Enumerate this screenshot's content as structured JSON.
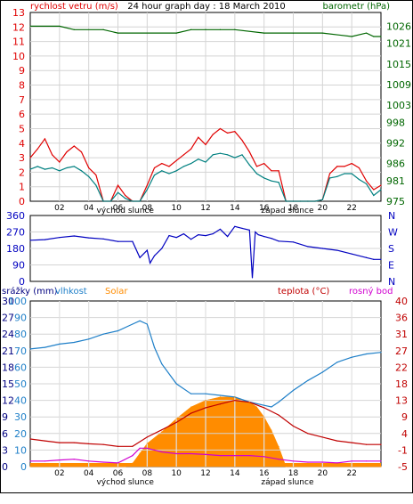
{
  "colors": {
    "wind": "#e00000",
    "wind_avg": "#008080",
    "barometer": "#006600",
    "direction": "#0000c0",
    "rain": "#000080",
    "humidity": "#1e7fc8",
    "solar": "#ff8c00",
    "temperature": "#c00000",
    "dewpoint": "#d000d0"
  },
  "chart_data": [
    {
      "type": "line",
      "title": "24 hour graph day : 18 March 2010",
      "ylabel_left": "rychlost vetru (m/s)",
      "ylabel_right": "barometr (hPa)",
      "ylim_left": [
        0,
        13
      ],
      "ylim_right": [
        975,
        1030
      ],
      "yticks_left": [
        "0",
        "1",
        "2",
        "3",
        "4",
        "5",
        "6",
        "7",
        "8",
        "9",
        "10",
        "11",
        "12",
        "13"
      ],
      "yticks_right": [
        "975",
        "981",
        "986",
        "992",
        "998",
        "1003",
        "1009",
        "1015",
        "1021",
        "1026"
      ],
      "xticks": [
        "02",
        "04",
        "06",
        "08",
        "10",
        "12",
        "14",
        "16",
        "18",
        "20",
        "22"
      ],
      "sunrise_label": "východ slunce",
      "sunset_label": "západ slunce",
      "sunrise_hour": 6.5,
      "sunset_hour": 17.6,
      "series": [
        {
          "key": "gust",
          "color_key": "wind",
          "axis": "left",
          "x": [
            0,
            0.5,
            1,
            1.5,
            2,
            2.5,
            3,
            3.5,
            4,
            4.5,
            5,
            5.5,
            6,
            6.5,
            7,
            7.5,
            8,
            8.5,
            9,
            9.5,
            10,
            10.5,
            11,
            11.5,
            12,
            12.5,
            13,
            13.5,
            14,
            14.5,
            15,
            15.5,
            16,
            16.5,
            17,
            17.5,
            18,
            18.5,
            19,
            19.5,
            20,
            20.5,
            21,
            21.5,
            22,
            22.5,
            23,
            23.5,
            24
          ],
          "y": [
            3,
            3.6,
            4.3,
            3.2,
            2.7,
            3.4,
            3.8,
            3.4,
            2.3,
            1.8,
            0,
            0,
            1.1,
            0.4,
            0,
            0,
            1.1,
            2.3,
            2.6,
            2.4,
            2.8,
            3.2,
            3.6,
            4.4,
            3.9,
            4.6,
            5,
            4.7,
            4.8,
            4.2,
            3.4,
            2.4,
            2.6,
            2.1,
            2.1,
            0,
            0,
            0,
            0,
            0,
            0.1,
            1.9,
            2.4,
            2.4,
            2.6,
            2.3,
            1.4,
            0.8,
            1.1
          ]
        },
        {
          "key": "wind_avg",
          "color_key": "wind_avg",
          "axis": "left",
          "x": [
            0,
            0.5,
            1,
            1.5,
            2,
            2.5,
            3,
            3.5,
            4,
            4.5,
            5,
            5.5,
            6,
            6.5,
            7,
            7.5,
            8,
            8.5,
            9,
            9.5,
            10,
            10.5,
            11,
            11.5,
            12,
            12.5,
            13,
            13.5,
            14,
            14.5,
            15,
            15.5,
            16,
            16.5,
            17,
            17.5,
            18,
            18.5,
            19,
            19.5,
            20,
            20.5,
            21,
            21.5,
            22,
            22.5,
            23,
            23.5,
            24
          ],
          "y": [
            2.2,
            2.4,
            2.2,
            2.3,
            2.1,
            2.3,
            2.4,
            2.1,
            1.7,
            1.1,
            0,
            0,
            0.6,
            0.2,
            0,
            0,
            0.8,
            1.8,
            2.1,
            1.9,
            2.1,
            2.4,
            2.6,
            2.9,
            2.7,
            3.2,
            3.3,
            3.2,
            3,
            3.2,
            2.5,
            1.9,
            1.6,
            1.4,
            1.3,
            0,
            0,
            0,
            0,
            0,
            0.1,
            1.6,
            1.7,
            1.9,
            1.9,
            1.5,
            1.2,
            0.4,
            0.8
          ]
        },
        {
          "key": "barometer",
          "color_key": "barometer",
          "axis": "right",
          "x": [
            0,
            2,
            3,
            5,
            6,
            10,
            11,
            12,
            13,
            14,
            16,
            18,
            20,
            22,
            23,
            23.5,
            24
          ],
          "y": [
            1026,
            1026,
            1025,
            1025,
            1024,
            1024,
            1025,
            1025,
            1025,
            1025,
            1024,
            1024,
            1024,
            1023,
            1024,
            1023,
            1023
          ]
        }
      ]
    },
    {
      "type": "line",
      "ylim": [
        0,
        360
      ],
      "yticks": [
        "0",
        "90",
        "180",
        "270",
        "360"
      ],
      "right_labels": [
        "N",
        "W",
        "S",
        "E",
        "N"
      ],
      "series": [
        {
          "key": "direction",
          "color_key": "direction",
          "x": [
            0,
            1,
            2,
            3,
            4,
            5,
            6,
            7,
            7.5,
            8,
            8.2,
            8.5,
            9,
            9.5,
            10,
            10.5,
            11,
            11.5,
            12,
            12.5,
            13,
            13.5,
            14,
            14.5,
            15,
            15.2,
            15.4,
            15.6,
            16,
            16.5,
            17,
            18,
            19,
            20,
            21,
            22,
            23,
            23.5,
            24
          ],
          "y": [
            225,
            228,
            240,
            248,
            238,
            232,
            218,
            218,
            130,
            170,
            100,
            140,
            180,
            250,
            240,
            260,
            230,
            255,
            250,
            260,
            285,
            245,
            300,
            290,
            280,
            20,
            270,
            255,
            245,
            235,
            220,
            215,
            190,
            180,
            170,
            150,
            130,
            120,
            120
          ]
        }
      ]
    },
    {
      "type": "line",
      "legend": [
        "srážky (mm)",
        "vlhkost",
        "Solar",
        "teplota (°C)",
        "rosný bod"
      ],
      "ylim_rain": [
        0,
        30
      ],
      "yticks_rain": [
        "0",
        "3",
        "6",
        "9",
        "12",
        "15",
        "18",
        "21",
        "24",
        "27",
        "30"
      ],
      "ylim_humidity": [
        0,
        100
      ],
      "yticks_humidity": [
        "0",
        "10",
        "20",
        "30",
        "40",
        "50",
        "60",
        "70",
        "80",
        "90",
        "100"
      ],
      "ylim_temp": [
        -5,
        40
      ],
      "yticks_temp": [
        "-5",
        "-1",
        "4",
        "9",
        "13",
        "18",
        "22",
        "27",
        "31",
        "36",
        "40"
      ],
      "xticks": [
        "02",
        "04",
        "06",
        "08",
        "10",
        "12",
        "14",
        "16",
        "18",
        "20",
        "22"
      ],
      "sunrise_label": "východ slunce",
      "sunset_label": "západ slunce",
      "series": [
        {
          "key": "humidity",
          "color_key": "humidity",
          "axis": "humidity",
          "x": [
            0,
            1,
            2,
            3,
            4,
            5,
            6,
            7,
            7.5,
            8,
            8.5,
            9,
            10,
            11,
            12,
            13,
            14,
            15,
            16,
            16.5,
            17,
            18,
            19,
            20,
            21,
            22,
            23,
            24
          ],
          "y": [
            71,
            72,
            74,
            75,
            77,
            80,
            82,
            86,
            88,
            86,
            72,
            62,
            50,
            44,
            44,
            43,
            42,
            39,
            37,
            36,
            39,
            46,
            52,
            57,
            63,
            66,
            68,
            69
          ]
        },
        {
          "key": "solar",
          "color_key": "solar",
          "axis": "humidity",
          "x": [
            0,
            6.5,
            7,
            7.5,
            8,
            9,
            10,
            11,
            12,
            13,
            14,
            15,
            15.5,
            16,
            16.5,
            17,
            17.5,
            24
          ],
          "y": [
            0,
            0,
            2,
            8,
            14,
            21,
            29,
            36,
            40,
            42,
            42,
            39,
            36,
            30,
            22,
            12,
            0,
            0
          ]
        },
        {
          "key": "temperature",
          "color_key": "temperature",
          "axis": "temp",
          "x": [
            0,
            1,
            2,
            3,
            4,
            5,
            6,
            7,
            8,
            9,
            10,
            11,
            12,
            13,
            14,
            15,
            16,
            17,
            18,
            19,
            20,
            21,
            22,
            23,
            24
          ],
          "y": [
            2.5,
            2,
            1.5,
            1.5,
            1.2,
            1,
            0.5,
            0.5,
            3,
            5,
            7,
            9.5,
            11,
            12,
            13,
            12.5,
            11,
            9,
            6,
            4,
            3,
            2,
            1.5,
            1,
            1
          ]
        },
        {
          "key": "dewpoint",
          "color_key": "dewpoint",
          "axis": "temp",
          "x": [
            0,
            1,
            2,
            3,
            4,
            5,
            6,
            7,
            7.5,
            8,
            8.5,
            9,
            10,
            11,
            12,
            13,
            14,
            15,
            16,
            17,
            18,
            19,
            20,
            21,
            22,
            23,
            24
          ],
          "y": [
            -3.5,
            -3.5,
            -3.2,
            -3,
            -3.5,
            -3.8,
            -4,
            -2,
            0,
            0,
            -0.5,
            -1,
            -1.5,
            -1.5,
            -1.7,
            -2,
            -2,
            -2,
            -2.3,
            -3,
            -3.5,
            -3.8,
            -3.8,
            -4,
            -3.5,
            -3.5,
            -3.5
          ]
        }
      ]
    }
  ]
}
